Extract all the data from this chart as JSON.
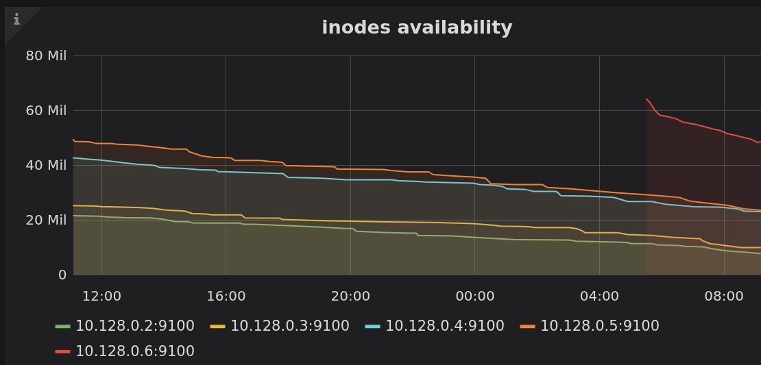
{
  "chart_data": {
    "type": "area",
    "title": "inodes availability",
    "xlim": [
      "--01-01T11:06",
      "--01-02T09:12"
    ],
    "xticks": [
      {
        "value": "--01-01T12:00",
        "label": "12:00"
      },
      {
        "value": "--01-01T16:00",
        "label": "16:00"
      },
      {
        "value": "--01-01T20:00",
        "label": "20:00"
      },
      {
        "value": "--01-02T00:00",
        "label": "00:00"
      },
      {
        "value": "--01-02T04:00",
        "label": "04:00"
      },
      {
        "value": "--01-02T08:00",
        "label": "08:00"
      }
    ],
    "ylim": [
      0,
      80
    ],
    "yticks": [
      0,
      {
        "value": 20,
        "label": "20 Mil"
      },
      {
        "value": 40,
        "label": "40 Mil"
      },
      {
        "value": 60,
        "label": "60 Mil"
      },
      {
        "value": 80,
        "label": "80 Mil"
      }
    ],
    "grid": true,
    "legend": "bottom",
    "series": [
      {
        "name": "10.128.0.2:9100",
        "color": "#7eb26d",
        "x": [
          "--01-01T11:06",
          "--01-01T11:56",
          "--01-01T12:16",
          "--01-01T12:43",
          "--01-01T13:35",
          "--01-01T13:55",
          "--01-01T14:22",
          "--01-01T14:48",
          "--01-01T14:55",
          "--01-01T15:21",
          "--01-01T16:27",
          "--01-01T16:34",
          "--01-01T16:54",
          "--01-01T18:00",
          "--01-01T19:06",
          "--01-01T19:46",
          "--01-01T20:05",
          "--01-01T20:12",
          "--01-01T21:05",
          "--01-01T21:58",
          "--01-01T22:07",
          "--01-01T22:11",
          "--01-01T23:17",
          "--01-01T23:57",
          "--01-02T00:37",
          "--01-02T01:16",
          "--01-02T03:02",
          "--01-02T03:16",
          "--01-02T04:35",
          "--01-02T04:55",
          "--01-02T05:01",
          "--01-02T05:41",
          "--01-02T05:54",
          "--01-02T06:34",
          "--01-02T06:47",
          "--01-02T07:20",
          "--01-02T07:40",
          "--01-02T08:00",
          "--01-02T08:26",
          "--01-02T08:46",
          "--01-02T09:12"
        ],
        "values": [
          21.5,
          21.3,
          21.0,
          20.8,
          20.7,
          20.3,
          19.4,
          19.3,
          18.9,
          18.8,
          18.8,
          18.4,
          18.4,
          17.9,
          17.3,
          16.9,
          16.8,
          15.8,
          15.4,
          15.1,
          15.1,
          14.3,
          14.1,
          13.6,
          13.2,
          12.8,
          12.6,
          12.2,
          11.9,
          11.7,
          11.3,
          11.3,
          10.8,
          10.6,
          10.3,
          10.1,
          9.4,
          8.8,
          8.4,
          8.1,
          7.6
        ]
      },
      {
        "name": "10.128.0.3:9100",
        "color": "#eab839",
        "x": [
          "--01-01T11:06",
          "--01-01T11:49",
          "--01-01T12:02",
          "--01-01T13:09",
          "--01-01T13:29",
          "--01-01T13:42",
          "--01-01T14:02",
          "--01-01T14:41",
          "--01-01T14:55",
          "--01-01T15:21",
          "--01-01T15:34",
          "--01-01T16:30",
          "--01-01T16:37",
          "--01-01T17:44",
          "--01-01T17:50",
          "--01-01T19:06",
          "--01-01T20:52",
          "--01-01T22:51",
          "--01-01T23:57",
          "--01-02T00:17",
          "--01-02T00:37",
          "--01-02T00:50",
          "--01-02T01:43",
          "--01-02T01:56",
          "--01-02T03:02",
          "--01-02T03:16",
          "--01-02T03:26",
          "--01-02T03:33",
          "--01-02T04:35",
          "--01-02T04:55",
          "--01-02T05:41",
          "--01-02T06:21",
          "--01-02T07:14",
          "--01-02T07:20",
          "--01-02T07:34",
          "--01-02T07:53",
          "--01-02T08:13",
          "--01-02T08:33",
          "--01-02T09:12"
        ],
        "values": [
          25.2,
          25.0,
          24.8,
          24.5,
          24.3,
          24.1,
          23.6,
          23.2,
          22.3,
          22.1,
          21.8,
          21.8,
          20.7,
          20.6,
          20.1,
          19.7,
          19.3,
          19.0,
          18.6,
          18.3,
          18.0,
          17.7,
          17.5,
          17.2,
          17.2,
          16.8,
          16.1,
          15.3,
          15.3,
          14.6,
          14.3,
          13.6,
          13.1,
          12.3,
          11.3,
          10.9,
          10.4,
          9.9,
          9.9
        ]
      },
      {
        "name": "10.128.0.4:9100",
        "color": "#6ed0e0",
        "x": [
          "--01-01T11:06",
          "--01-01T11:36",
          "--01-01T11:59",
          "--01-01T12:22",
          "--01-01T12:43",
          "--01-01T13:09",
          "--01-01T13:42",
          "--01-01T13:52",
          "--01-01T14:35",
          "--01-01T15:08",
          "--01-01T15:41",
          "--01-01T15:45",
          "--01-01T16:27",
          "--01-01T17:07",
          "--01-01T17:50",
          "--01-01T18:00",
          "--01-01T19:06",
          "--01-01T19:52",
          "--01-01T21:19",
          "--01-01T21:32",
          "--01-01T22:11",
          "--01-01T22:25",
          "--01-01T23:57",
          "--01-02T00:10",
          "--01-02T00:37",
          "--01-02T00:53",
          "--01-02T01:03",
          "--01-02T01:37",
          "--01-02T01:53",
          "--01-02T02:36",
          "--01-02T02:40",
          "--01-02T02:46",
          "--01-02T03:42",
          "--01-02T04:28",
          "--01-02T04:55",
          "--01-02T05:41",
          "--01-02T06:08",
          "--01-02T07:01",
          "--01-02T07:53",
          "--01-02T08:26",
          "--01-02T08:40",
          "--01-02T09:12"
        ],
        "values": [
          42.6,
          42.1,
          41.8,
          41.3,
          40.8,
          40.3,
          39.9,
          39.1,
          38.8,
          38.3,
          38.1,
          37.6,
          37.4,
          37.1,
          36.9,
          35.5,
          35.2,
          34.6,
          34.6,
          34.3,
          34.0,
          33.8,
          33.4,
          32.9,
          32.6,
          32.2,
          31.3,
          31.1,
          30.4,
          30.4,
          30.0,
          28.8,
          28.6,
          28.2,
          26.7,
          26.7,
          25.7,
          24.8,
          24.6,
          24.0,
          23.2,
          23.0
        ]
      },
      {
        "name": "10.128.0.5:9100",
        "color": "#ef843c",
        "x": [
          "--01-01T11:06",
          "--01-01T11:09",
          "--01-01T11:36",
          "--01-01T11:49",
          "--01-01T12:20",
          "--01-01T12:29",
          "--01-01T13:09",
          "--01-01T13:29",
          "--01-01T14:02",
          "--01-01T14:15",
          "--01-01T14:44",
          "--01-01T14:50",
          "--01-01T15:14",
          "--01-01T15:34",
          "--01-01T16:10",
          "--01-01T16:17",
          "--01-01T17:07",
          "--01-01T17:23",
          "--01-01T17:49",
          "--01-01T17:56",
          "--01-01T18:53",
          "--01-01T19:29",
          "--01-01T19:35",
          "--01-01T21:05",
          "--01-01T21:19",
          "--01-01T21:52",
          "--01-01T22:31",
          "--01-01T22:40",
          "--01-01T23:04",
          "--01-01T23:31",
          "--01-01T23:57",
          "--01-02T00:21",
          "--01-02T00:31",
          "--01-02T01:16",
          "--01-02T02:10",
          "--01-02T02:20",
          "--01-02T03:02",
          "--01-02T03:55",
          "--01-02T04:35",
          "--01-02T05:28",
          "--01-02T05:54",
          "--01-02T06:34",
          "--01-02T06:54",
          "--01-02T07:27",
          "--01-02T08:07",
          "--01-02T08:40",
          "--01-02T09:12"
        ],
        "values": [
          49.3,
          48.6,
          48.5,
          47.9,
          47.9,
          47.6,
          47.3,
          46.9,
          46.2,
          45.8,
          45.8,
          44.8,
          43.3,
          42.8,
          42.6,
          41.7,
          41.7,
          41.3,
          41.0,
          39.8,
          39.5,
          39.4,
          38.5,
          38.4,
          38.0,
          37.5,
          37.5,
          36.5,
          36.2,
          35.9,
          35.6,
          35.2,
          33.2,
          32.9,
          32.9,
          31.8,
          31.4,
          30.5,
          29.9,
          29.2,
          28.8,
          28.2,
          26.9,
          26.1,
          25.3,
          24.0,
          23.5
        ]
      },
      {
        "name": "10.128.0.6:9100",
        "color": "#e24d42",
        "x": [
          "--01-02T05:31",
          "--01-02T05:38",
          "--01-02T05:47",
          "--01-02T05:57",
          "--01-02T06:14",
          "--01-02T06:28",
          "--01-02T06:41",
          "--01-02T07:07",
          "--01-02T07:27",
          "--01-02T07:40",
          "--01-02T07:53",
          "--01-02T08:07",
          "--01-02T08:26",
          "--01-02T08:40",
          "--01-02T08:53",
          "--01-02T09:04",
          "--01-02T09:12"
        ],
        "values": [
          64.2,
          62.8,
          60.1,
          58.2,
          57.6,
          56.9,
          55.7,
          54.8,
          53.8,
          53.1,
          52.6,
          51.5,
          50.7,
          50.0,
          49.4,
          48.4,
          48.4
        ]
      }
    ]
  }
}
